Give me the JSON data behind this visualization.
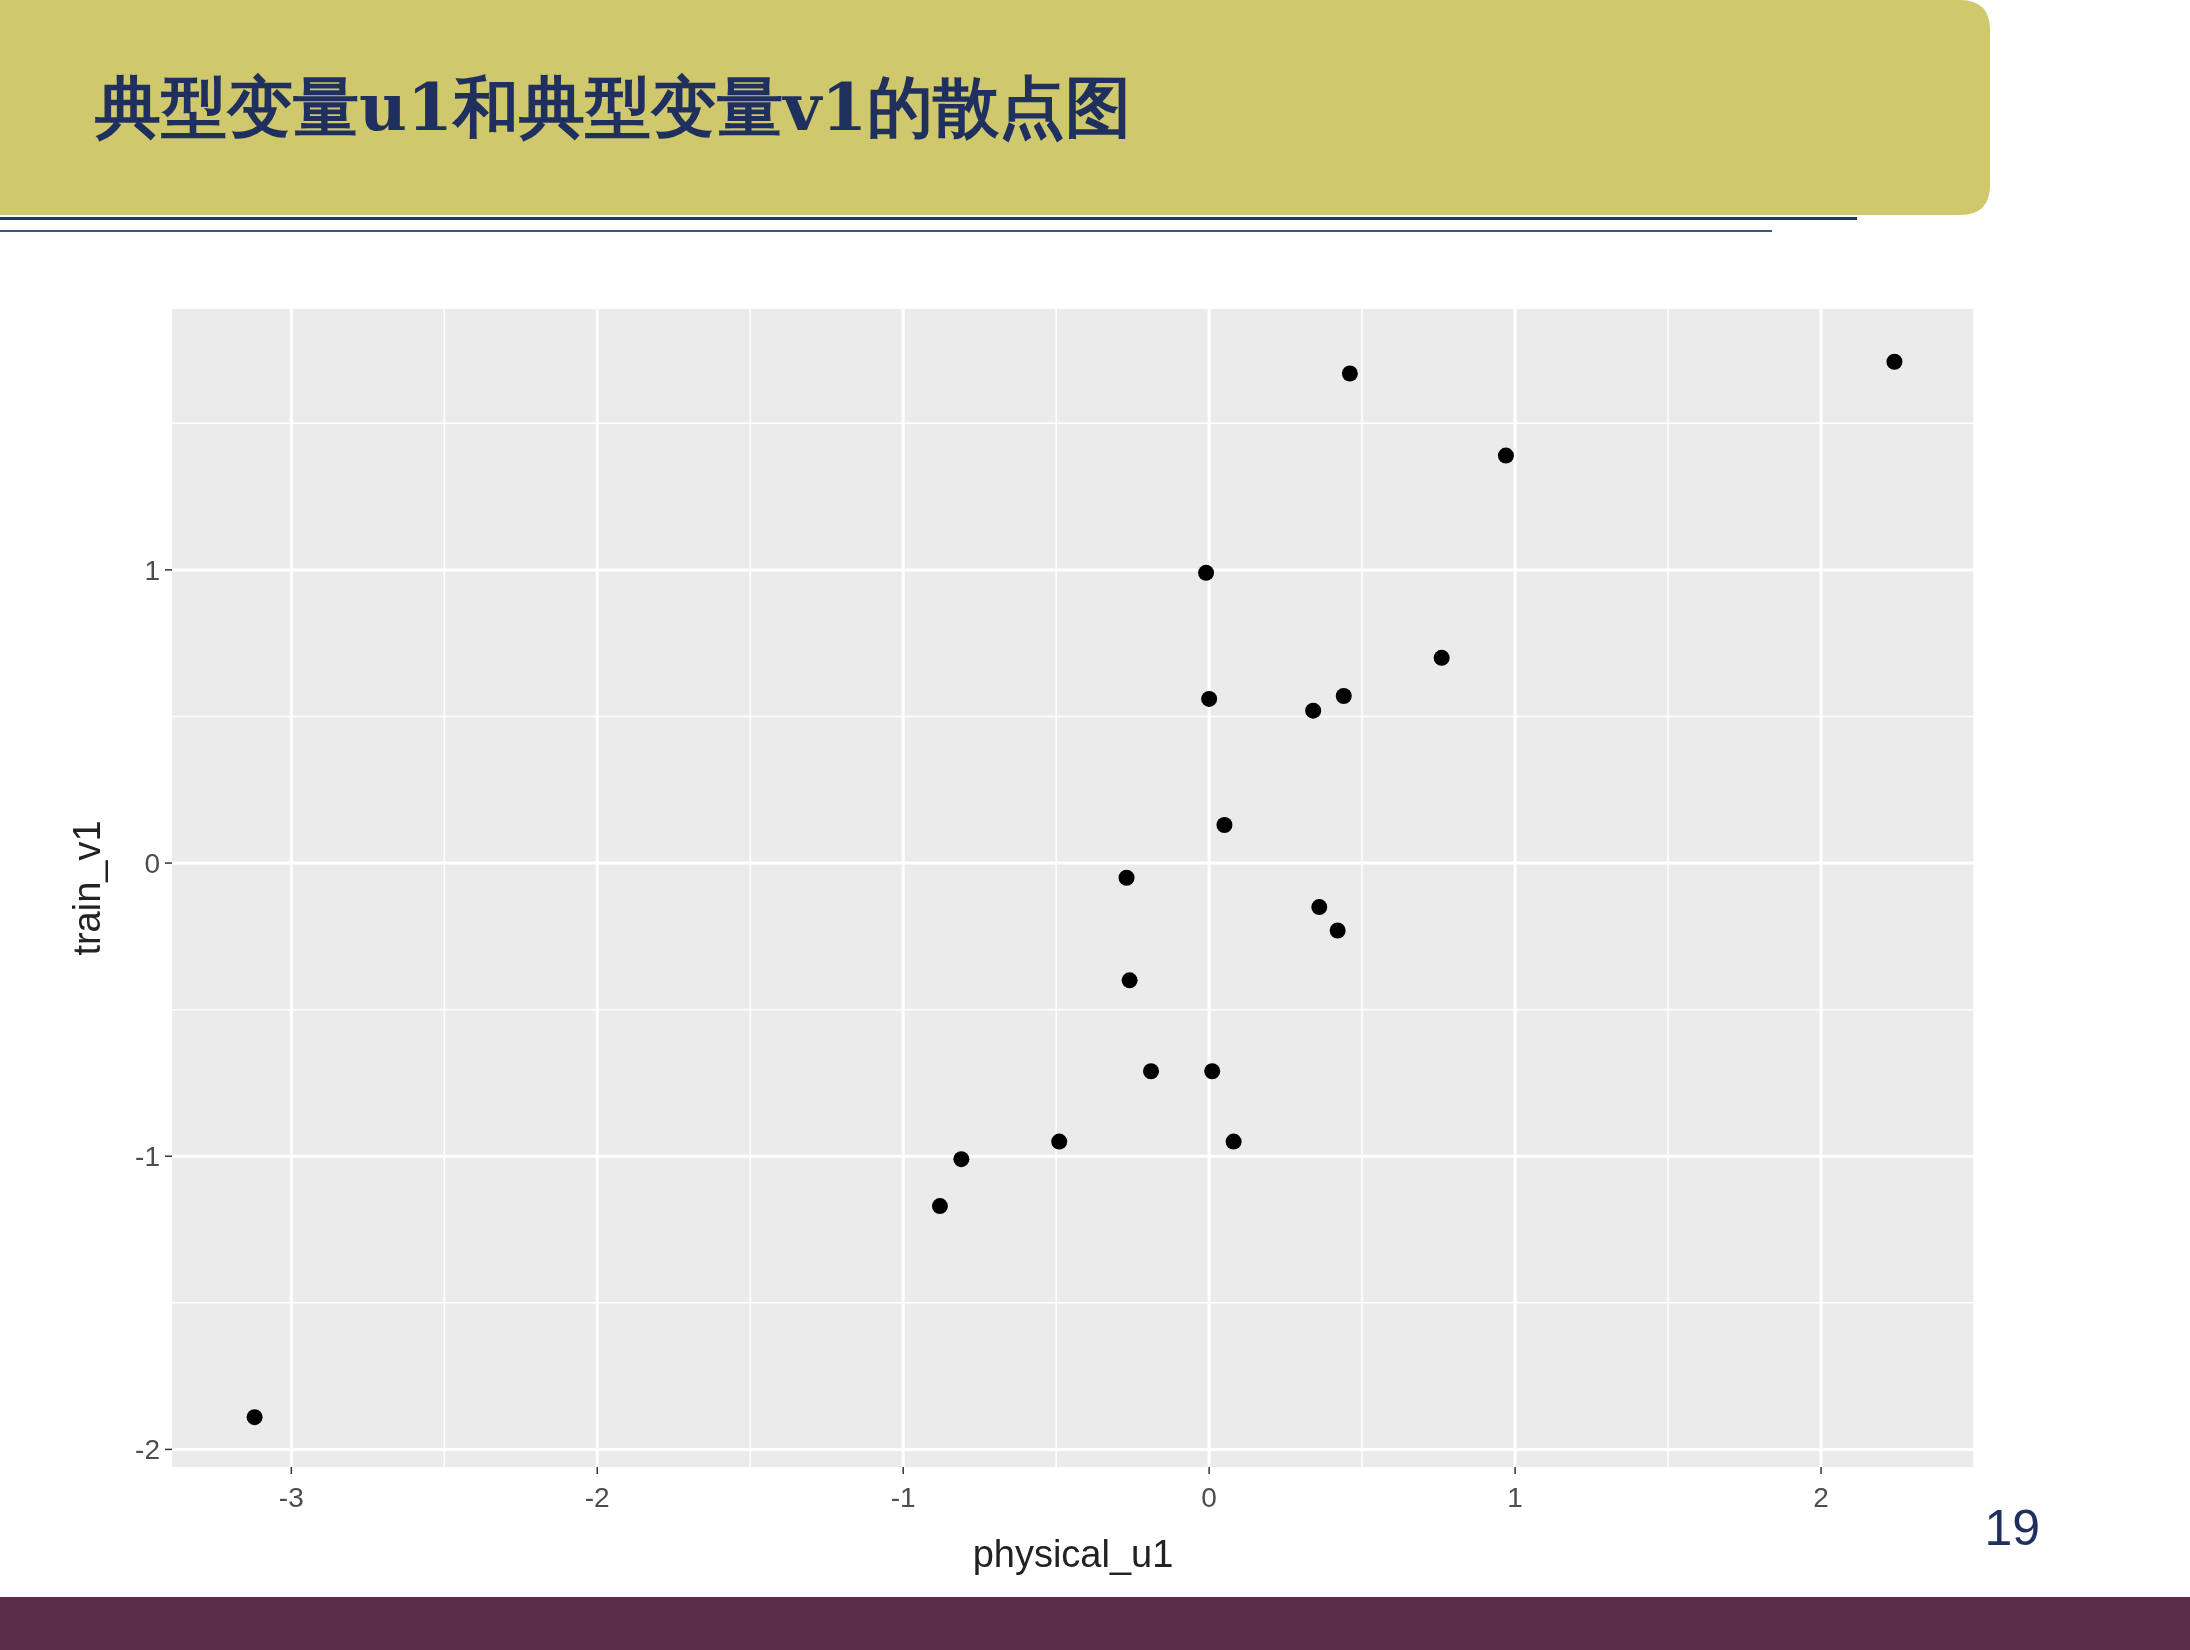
{
  "chart_data": {
    "type": "scatter",
    "title": "典型变量u1和典型变量v1的散点图",
    "xlabel": "physical_u1",
    "ylabel": "train_v1",
    "x": [
      2.24,
      0.46,
      0.97,
      -0.01,
      0.76,
      0.0,
      0.44,
      0.34,
      0.05,
      -0.27,
      0.36,
      0.42,
      -0.26,
      -0.19,
      0.01,
      -0.49,
      0.08,
      -0.81,
      -0.88,
      -3.12
    ],
    "series": [
      {
        "color": "#000000",
        "values": [
          1.71,
          1.67,
          1.39,
          0.99,
          0.7,
          0.56,
          0.57,
          0.52,
          0.13,
          -0.05,
          -0.15,
          -0.23,
          -0.4,
          -0.71,
          -0.71,
          -0.95,
          -0.95,
          -1.01,
          -1.17,
          -1.89
        ]
      }
    ],
    "xlim": [
      -3.39,
      2.5
    ],
    "ylim": [
      -2.06,
      1.89
    ],
    "xticks": [
      -3,
      -2,
      -1,
      0,
      1,
      2
    ],
    "yticks": [
      -2,
      -1,
      0,
      1
    ],
    "grid": true,
    "marker": "circle",
    "annotations": [
      "19"
    ]
  }
}
